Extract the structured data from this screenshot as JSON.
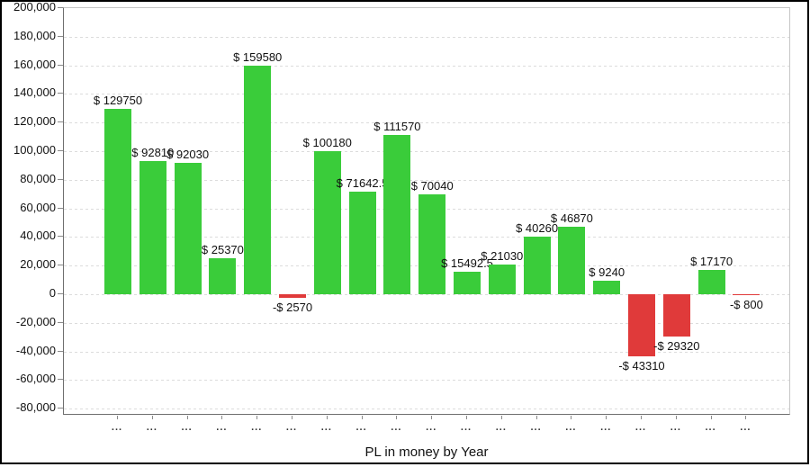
{
  "chart_data": {
    "type": "bar",
    "title": "PL in money by Year",
    "xlabel": "Year",
    "ylabel": "PL in money",
    "ylim": [
      -80000,
      200000
    ],
    "grid": true,
    "legend": false,
    "y_ticks": [
      200000,
      180000,
      160000,
      140000,
      120000,
      100000,
      80000,
      60000,
      40000,
      20000,
      0,
      -20000,
      -40000,
      -60000,
      -80000
    ],
    "y_tick_labels": [
      "200,000",
      "180,000",
      "160,000",
      "140,000",
      "120,000",
      "100,000",
      "80,000",
      "60,000",
      "40,000",
      "20,000",
      "0",
      "-20,000",
      "-40,000",
      "-60,000",
      "-80,000"
    ],
    "categories": [
      "...",
      "...",
      "...",
      "...",
      "...",
      "...",
      "...",
      "...",
      "...",
      "...",
      "...",
      "...",
      "...",
      "...",
      "...",
      "...",
      "...",
      "...",
      "..."
    ],
    "values": [
      129750,
      92810,
      92030,
      25370,
      159580,
      -2570,
      100180,
      71642.5,
      111570,
      70040,
      15492.5,
      21030,
      40260,
      46870,
      9240,
      -43310,
      -29320,
      17170,
      -800
    ],
    "bar_labels": [
      "$ 129750",
      "$ 92810",
      "$ 92030",
      "$ 25370",
      "$ 159580",
      "-$ 2570",
      "$ 100180",
      "$ 71642.5",
      "$ 111570",
      "$ 70040",
      "$ 15492.5",
      "$ 21030",
      "$ 40260",
      "$ 46870",
      "$ 9240",
      "-$ 43310",
      "-$ 29320",
      "$ 17170",
      "-$ 800"
    ],
    "colors": {
      "positive": "#3acc3a",
      "negative": "#e03a3a"
    }
  }
}
